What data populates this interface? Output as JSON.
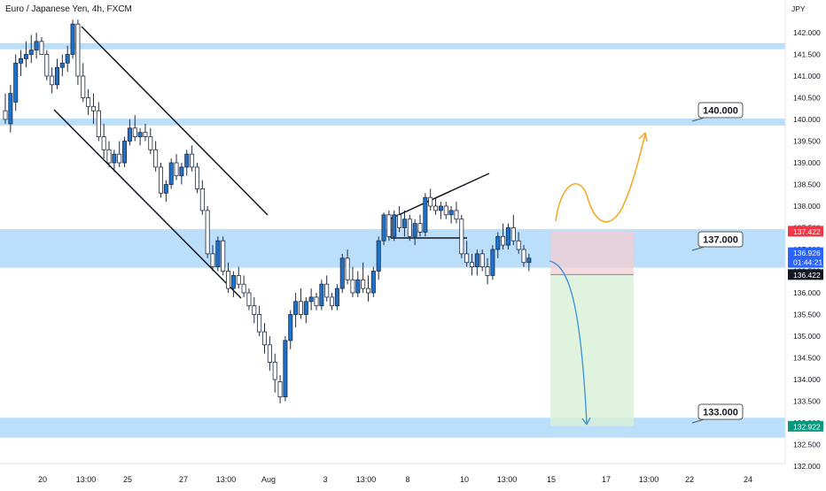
{
  "symbol_title": "Euro / Japanese Yen, 4h, FXCM",
  "colors": {
    "zone": "#bbdefb",
    "bull": "#1e72c8",
    "bear": "#ffffff",
    "outline": "#1f2a44",
    "risk": "#f4cdd3",
    "reward": "#d8f0d6",
    "projection_up": "#f5a623",
    "projection_down": "#3a8fd8",
    "label_red": "#f23645",
    "label_blue": "#2962ff",
    "label_black": "#131722",
    "label_green": "#089981"
  },
  "chart_data": {
    "type": "candlestick",
    "symbol": "Euro / Japanese Yen",
    "timeframe": "4h",
    "source": "FXCM",
    "currency": "JPY",
    "grid": false,
    "y_ticks": [
      "142.000",
      "141.500",
      "141.000",
      "140.500",
      "140.000",
      "139.500",
      "139.000",
      "138.500",
      "138.000",
      "137.500",
      "137.000",
      "136.500",
      "136.000",
      "135.500",
      "135.000",
      "134.500",
      "134.000",
      "133.500",
      "133.000",
      "132.500",
      "132.000"
    ],
    "x_ticks": [
      "20",
      "13:00",
      "25",
      "27",
      "13:00",
      "Aug",
      "3",
      "13:00",
      "8",
      "10",
      "13:00",
      "15",
      "17",
      "13:00",
      "22",
      "24"
    ],
    "price_labels": [
      {
        "text": "137.422",
        "color": "red"
      },
      {
        "text": "136.926",
        "color": "blue"
      },
      {
        "text": "01:44:21",
        "color": "blue"
      },
      {
        "text": "136.422",
        "color": "black"
      },
      {
        "text": "132.922",
        "color": "green"
      }
    ],
    "zones": [
      {
        "from": 141.62,
        "to": 141.76
      },
      {
        "from": 139.86,
        "to": 140.02
      },
      {
        "from": 136.58,
        "to": 137.47
      },
      {
        "from": 132.66,
        "to": 133.12
      }
    ],
    "zone_labels": [
      "140.000",
      "137.000",
      "133.000"
    ],
    "position": {
      "type": "short",
      "entry": 136.422,
      "stop": 137.422,
      "target": 132.922
    },
    "candles": [
      {
        "o": 140.2,
        "h": 140.6,
        "l": 139.9,
        "c": 140.0
      },
      {
        "o": 139.9,
        "h": 140.8,
        "l": 139.7,
        "c": 140.6
      },
      {
        "o": 140.4,
        "h": 141.5,
        "l": 140.2,
        "c": 141.3
      },
      {
        "o": 141.3,
        "h": 141.6,
        "l": 141.0,
        "c": 141.4
      },
      {
        "o": 141.4,
        "h": 141.8,
        "l": 141.2,
        "c": 141.5
      },
      {
        "o": 141.5,
        "h": 141.95,
        "l": 141.3,
        "c": 141.6
      },
      {
        "o": 141.6,
        "h": 142.0,
        "l": 141.4,
        "c": 141.8
      },
      {
        "o": 141.8,
        "h": 141.9,
        "l": 141.5,
        "c": 141.5
      },
      {
        "o": 141.5,
        "h": 141.6,
        "l": 140.9,
        "c": 141.0
      },
      {
        "o": 141.0,
        "h": 141.2,
        "l": 140.6,
        "c": 140.8
      },
      {
        "o": 140.8,
        "h": 141.4,
        "l": 140.7,
        "c": 141.2
      },
      {
        "o": 141.2,
        "h": 141.5,
        "l": 141.0,
        "c": 141.3
      },
      {
        "o": 141.3,
        "h": 141.7,
        "l": 141.1,
        "c": 141.5
      },
      {
        "o": 141.5,
        "h": 142.3,
        "l": 141.4,
        "c": 142.2
      },
      {
        "o": 142.2,
        "h": 142.3,
        "l": 140.8,
        "c": 141.0
      },
      {
        "o": 141.0,
        "h": 141.3,
        "l": 140.4,
        "c": 140.5
      },
      {
        "o": 140.5,
        "h": 140.7,
        "l": 140.1,
        "c": 140.3
      },
      {
        "o": 140.3,
        "h": 140.6,
        "l": 139.9,
        "c": 140.2
      },
      {
        "o": 140.2,
        "h": 140.4,
        "l": 139.5,
        "c": 139.6
      },
      {
        "o": 139.6,
        "h": 139.9,
        "l": 139.1,
        "c": 139.3
      },
      {
        "o": 139.3,
        "h": 139.5,
        "l": 138.9,
        "c": 139.0
      },
      {
        "o": 139.0,
        "h": 139.3,
        "l": 138.8,
        "c": 139.2
      },
      {
        "o": 139.2,
        "h": 139.5,
        "l": 138.9,
        "c": 139.0
      },
      {
        "o": 139.0,
        "h": 139.6,
        "l": 138.9,
        "c": 139.5
      },
      {
        "o": 139.5,
        "h": 140.0,
        "l": 139.4,
        "c": 139.8
      },
      {
        "o": 139.8,
        "h": 140.1,
        "l": 139.5,
        "c": 139.6
      },
      {
        "o": 139.6,
        "h": 139.8,
        "l": 139.4,
        "c": 139.7
      },
      {
        "o": 139.7,
        "h": 139.9,
        "l": 139.5,
        "c": 139.6
      },
      {
        "o": 139.6,
        "h": 139.8,
        "l": 139.2,
        "c": 139.3
      },
      {
        "o": 139.3,
        "h": 139.5,
        "l": 138.8,
        "c": 138.9
      },
      {
        "o": 138.9,
        "h": 139.0,
        "l": 138.2,
        "c": 138.3
      },
      {
        "o": 138.3,
        "h": 138.6,
        "l": 138.1,
        "c": 138.5
      },
      {
        "o": 138.5,
        "h": 139.1,
        "l": 138.4,
        "c": 139.0
      },
      {
        "o": 139.0,
        "h": 139.2,
        "l": 138.6,
        "c": 138.7
      },
      {
        "o": 138.7,
        "h": 139.0,
        "l": 138.5,
        "c": 138.9
      },
      {
        "o": 138.9,
        "h": 139.3,
        "l": 138.7,
        "c": 139.2
      },
      {
        "o": 139.2,
        "h": 139.4,
        "l": 138.8,
        "c": 138.9
      },
      {
        "o": 138.9,
        "h": 139.0,
        "l": 138.3,
        "c": 138.4
      },
      {
        "o": 138.4,
        "h": 138.6,
        "l": 137.8,
        "c": 137.9
      },
      {
        "o": 137.9,
        "h": 138.0,
        "l": 136.8,
        "c": 136.9
      },
      {
        "o": 136.9,
        "h": 137.1,
        "l": 136.5,
        "c": 136.6
      },
      {
        "o": 136.6,
        "h": 137.3,
        "l": 136.5,
        "c": 137.2
      },
      {
        "o": 137.2,
        "h": 137.3,
        "l": 136.4,
        "c": 136.5
      },
      {
        "o": 136.5,
        "h": 136.7,
        "l": 136.0,
        "c": 136.1
      },
      {
        "o": 136.1,
        "h": 136.5,
        "l": 135.9,
        "c": 136.4
      },
      {
        "o": 136.4,
        "h": 136.6,
        "l": 136.1,
        "c": 136.2
      },
      {
        "o": 136.2,
        "h": 136.4,
        "l": 135.9,
        "c": 136.0
      },
      {
        "o": 136.0,
        "h": 136.1,
        "l": 135.6,
        "c": 135.7
      },
      {
        "o": 135.7,
        "h": 135.9,
        "l": 135.3,
        "c": 135.5
      },
      {
        "o": 135.5,
        "h": 135.7,
        "l": 135.0,
        "c": 135.1
      },
      {
        "o": 135.1,
        "h": 135.3,
        "l": 134.6,
        "c": 134.8
      },
      {
        "o": 134.8,
        "h": 135.0,
        "l": 134.2,
        "c": 134.4
      },
      {
        "o": 134.4,
        "h": 134.6,
        "l": 133.7,
        "c": 134.0
      },
      {
        "o": 133.95,
        "h": 134.1,
        "l": 133.45,
        "c": 133.6
      },
      {
        "o": 133.6,
        "h": 135.0,
        "l": 133.5,
        "c": 134.9
      },
      {
        "o": 134.9,
        "h": 135.6,
        "l": 134.7,
        "c": 135.5
      },
      {
        "o": 135.5,
        "h": 136.0,
        "l": 135.2,
        "c": 135.8
      },
      {
        "o": 135.8,
        "h": 136.1,
        "l": 135.4,
        "c": 135.5
      },
      {
        "o": 135.5,
        "h": 135.9,
        "l": 135.3,
        "c": 135.8
      },
      {
        "o": 135.8,
        "h": 136.1,
        "l": 135.6,
        "c": 135.9
      },
      {
        "o": 135.9,
        "h": 136.0,
        "l": 135.6,
        "c": 135.7
      },
      {
        "o": 135.7,
        "h": 136.3,
        "l": 135.6,
        "c": 136.2
      },
      {
        "o": 136.2,
        "h": 136.4,
        "l": 135.8,
        "c": 135.9
      },
      {
        "o": 135.9,
        "h": 136.0,
        "l": 135.6,
        "c": 135.7
      },
      {
        "o": 135.7,
        "h": 136.2,
        "l": 135.6,
        "c": 136.1
      },
      {
        "o": 136.1,
        "h": 136.9,
        "l": 136.0,
        "c": 136.8
      },
      {
        "o": 136.8,
        "h": 137.0,
        "l": 136.2,
        "c": 136.3
      },
      {
        "o": 136.3,
        "h": 136.6,
        "l": 135.9,
        "c": 136.0
      },
      {
        "o": 136.0,
        "h": 136.5,
        "l": 135.9,
        "c": 136.3
      },
      {
        "o": 136.3,
        "h": 136.7,
        "l": 136.0,
        "c": 136.1
      },
      {
        "o": 136.1,
        "h": 136.4,
        "l": 135.8,
        "c": 136.0
      },
      {
        "o": 136.0,
        "h": 136.6,
        "l": 135.9,
        "c": 136.5
      },
      {
        "o": 136.5,
        "h": 137.3,
        "l": 136.3,
        "c": 137.2
      },
      {
        "o": 137.2,
        "h": 137.85,
        "l": 137.1,
        "c": 137.8
      },
      {
        "o": 137.8,
        "h": 137.9,
        "l": 137.2,
        "c": 137.3
      },
      {
        "o": 137.3,
        "h": 137.9,
        "l": 137.2,
        "c": 137.8
      },
      {
        "o": 137.8,
        "h": 138.0,
        "l": 137.4,
        "c": 137.5
      },
      {
        "o": 137.5,
        "h": 137.9,
        "l": 137.3,
        "c": 137.7
      },
      {
        "o": 137.7,
        "h": 137.8,
        "l": 137.2,
        "c": 137.3
      },
      {
        "o": 137.3,
        "h": 137.7,
        "l": 137.1,
        "c": 137.6
      },
      {
        "o": 137.6,
        "h": 137.8,
        "l": 137.3,
        "c": 137.4
      },
      {
        "o": 137.4,
        "h": 138.3,
        "l": 137.3,
        "c": 138.2
      },
      {
        "o": 138.2,
        "h": 138.4,
        "l": 137.9,
        "c": 138.0
      },
      {
        "o": 138.0,
        "h": 138.2,
        "l": 137.8,
        "c": 137.9
      },
      {
        "o": 137.9,
        "h": 138.1,
        "l": 137.7,
        "c": 138.0
      },
      {
        "o": 138.0,
        "h": 138.1,
        "l": 137.7,
        "c": 137.8
      },
      {
        "o": 137.8,
        "h": 138.0,
        "l": 137.6,
        "c": 137.9
      },
      {
        "o": 137.9,
        "h": 138.1,
        "l": 137.6,
        "c": 137.7
      },
      {
        "o": 137.7,
        "h": 137.8,
        "l": 136.8,
        "c": 136.9
      },
      {
        "o": 136.9,
        "h": 137.2,
        "l": 136.6,
        "c": 136.7
      },
      {
        "o": 136.7,
        "h": 136.9,
        "l": 136.4,
        "c": 136.6
      },
      {
        "o": 136.6,
        "h": 137.0,
        "l": 136.4,
        "c": 136.9
      },
      {
        "o": 136.9,
        "h": 137.0,
        "l": 136.5,
        "c": 136.6
      },
      {
        "o": 136.6,
        "h": 136.8,
        "l": 136.2,
        "c": 136.4
      },
      {
        "o": 136.4,
        "h": 137.1,
        "l": 136.3,
        "c": 137.0
      },
      {
        "o": 137.0,
        "h": 137.4,
        "l": 136.8,
        "c": 137.3
      },
      {
        "o": 137.3,
        "h": 137.6,
        "l": 137.0,
        "c": 137.1
      },
      {
        "o": 137.1,
        "h": 137.6,
        "l": 137.0,
        "c": 137.5
      },
      {
        "o": 137.5,
        "h": 137.8,
        "l": 137.1,
        "c": 137.2
      },
      {
        "o": 137.2,
        "h": 137.4,
        "l": 136.9,
        "c": 137.0
      },
      {
        "o": 137.0,
        "h": 137.1,
        "l": 136.6,
        "c": 136.7
      },
      {
        "o": 136.7,
        "h": 136.9,
        "l": 136.5,
        "c": 136.8
      }
    ]
  }
}
